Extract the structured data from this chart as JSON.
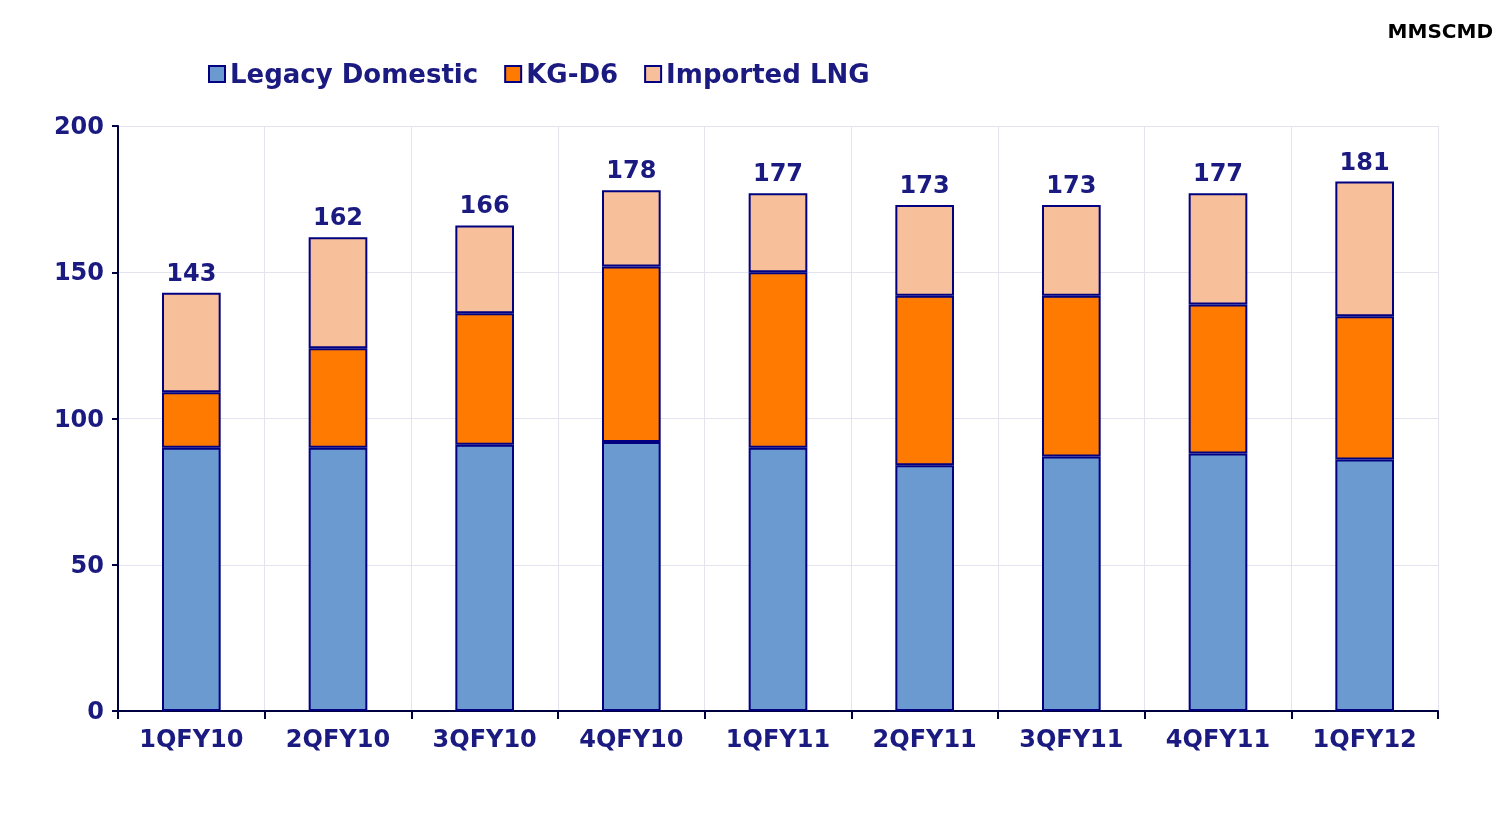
{
  "chart_data": {
    "type": "bar",
    "stacked": true,
    "ylabel": "MMSCMD",
    "categories": [
      "1QFY10",
      "2QFY10",
      "3QFY10",
      "4QFY10",
      "1QFY11",
      "2QFY11",
      "3QFY11",
      "4QFY11",
      "1QFY12"
    ],
    "series": [
      {
        "name": "Legacy Domestic",
        "color": "#6a9ad0",
        "values": [
          90,
          90,
          91,
          92,
          90,
          84,
          87,
          88,
          86
        ]
      },
      {
        "name": "KG-D6",
        "color": "#ff7a00",
        "values": [
          19,
          34,
          45,
          60,
          60,
          58,
          55,
          51,
          49
        ]
      },
      {
        "name": "Imported LNG",
        "color": "#f8c09a",
        "values": [
          34,
          38,
          30,
          26,
          27,
          31,
          31,
          38,
          46
        ]
      }
    ],
    "totals": [
      "143",
      "162",
      "166",
      "178",
      "177",
      "173",
      "173",
      "177",
      "181"
    ],
    "ylim": [
      0,
      200
    ],
    "yticks": [
      0,
      50,
      100,
      150,
      200
    ],
    "grid": true,
    "legend": "top left"
  }
}
